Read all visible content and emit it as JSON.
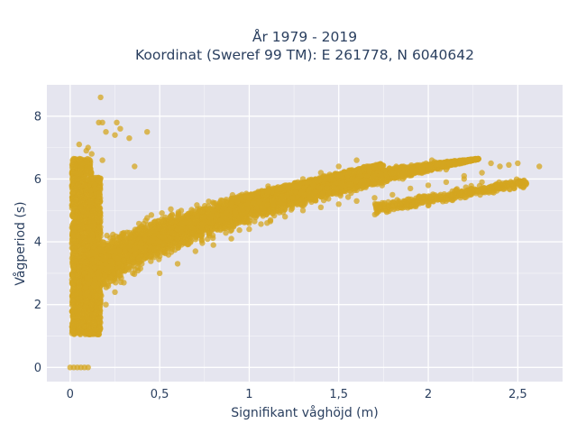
{
  "chart_data": {
    "type": "scatter",
    "title_line1": "År 1979 - 2019",
    "title_line2": "Koordinat (Sweref 99 TM): E 261778, N 6040642",
    "xlabel": "Signifikant våghöjd (m)",
    "ylabel": "Vågperiod (s)",
    "xlim": [
      -0.13,
      2.75
    ],
    "ylim": [
      -0.45,
      9.0
    ],
    "x_ticks": [
      0,
      0.5,
      1,
      1.5,
      2,
      2.5
    ],
    "x_tick_labels": [
      "0",
      "0,5",
      "1",
      "1,5",
      "2",
      "2,5"
    ],
    "y_ticks": [
      0,
      2,
      4,
      6,
      8
    ],
    "y_tick_labels": [
      "0",
      "2",
      "4",
      "6",
      "8"
    ],
    "grid": true,
    "legend": "none",
    "marker_color": "#d4a520",
    "marker_opacity": 0.75,
    "plot_background": "#e5e5ef",
    "point_count_note": "dense cloud; representative sample of points",
    "series": [
      {
        "points": [
          [
            0.0,
            0.0
          ],
          [
            0.02,
            0.0
          ],
          [
            0.04,
            0.0
          ],
          [
            0.06,
            0.0
          ],
          [
            0.08,
            0.0
          ],
          [
            0.1,
            0.0
          ],
          [
            0.01,
            1.3
          ],
          [
            0.03,
            1.8
          ],
          [
            0.05,
            2.6
          ],
          [
            0.02,
            3.4
          ],
          [
            0.04,
            4.2
          ],
          [
            0.06,
            5.1
          ],
          [
            0.08,
            5.8
          ],
          [
            0.03,
            6.2
          ],
          [
            0.07,
            6.5
          ],
          [
            0.1,
            7.0
          ],
          [
            0.12,
            6.8
          ],
          [
            0.05,
            7.1
          ],
          [
            0.09,
            6.9
          ],
          [
            0.08,
            1.1
          ],
          [
            0.1,
            1.5
          ],
          [
            0.12,
            2.0
          ],
          [
            0.14,
            2.8
          ],
          [
            0.11,
            3.6
          ],
          [
            0.13,
            4.5
          ],
          [
            0.15,
            5.3
          ],
          [
            0.12,
            6.0
          ],
          [
            0.18,
            6.6
          ],
          [
            0.2,
            7.5
          ],
          [
            0.25,
            7.4
          ],
          [
            0.28,
            7.6
          ],
          [
            0.33,
            7.3
          ],
          [
            0.36,
            6.4
          ],
          [
            0.43,
            7.5
          ],
          [
            0.16,
            7.8
          ],
          [
            0.18,
            7.8
          ],
          [
            0.26,
            7.8
          ],
          [
            0.17,
            8.6
          ],
          [
            0.2,
            2.0
          ],
          [
            0.25,
            2.4
          ],
          [
            0.3,
            2.7
          ],
          [
            0.35,
            3.0
          ],
          [
            0.4,
            3.3
          ],
          [
            0.45,
            3.6
          ],
          [
            0.5,
            3.0
          ],
          [
            0.6,
            3.3
          ],
          [
            0.7,
            3.7
          ],
          [
            0.8,
            3.9
          ],
          [
            0.9,
            4.1
          ],
          [
            1.0,
            4.4
          ],
          [
            0.3,
            3.4
          ],
          [
            0.4,
            3.8
          ],
          [
            0.5,
            4.0
          ],
          [
            0.6,
            4.4
          ],
          [
            0.7,
            4.7
          ],
          [
            0.8,
            5.0
          ],
          [
            0.9,
            5.2
          ],
          [
            1.0,
            5.4
          ],
          [
            1.1,
            4.6
          ],
          [
            1.2,
            4.8
          ],
          [
            1.3,
            5.0
          ],
          [
            1.4,
            5.1
          ],
          [
            1.5,
            5.2
          ],
          [
            1.6,
            5.3
          ],
          [
            1.7,
            5.4
          ],
          [
            1.8,
            5.5
          ],
          [
            1.1,
            5.6
          ],
          [
            1.2,
            5.8
          ],
          [
            1.3,
            6.0
          ],
          [
            1.4,
            6.2
          ],
          [
            1.5,
            6.4
          ],
          [
            1.6,
            6.6
          ],
          [
            1.7,
            6.4
          ],
          [
            1.9,
            5.7
          ],
          [
            2.0,
            5.8
          ],
          [
            2.1,
            5.9
          ],
          [
            2.2,
            6.0
          ],
          [
            2.3,
            6.2
          ],
          [
            2.4,
            6.4
          ],
          [
            2.5,
            6.5
          ],
          [
            2.62,
            6.4
          ],
          [
            2.02,
            6.6
          ],
          [
            2.1,
            6.3
          ],
          [
            2.2,
            6.1
          ],
          [
            2.3,
            5.9
          ],
          [
            2.35,
            6.5
          ],
          [
            2.45,
            6.45
          ]
        ]
      }
    ]
  }
}
